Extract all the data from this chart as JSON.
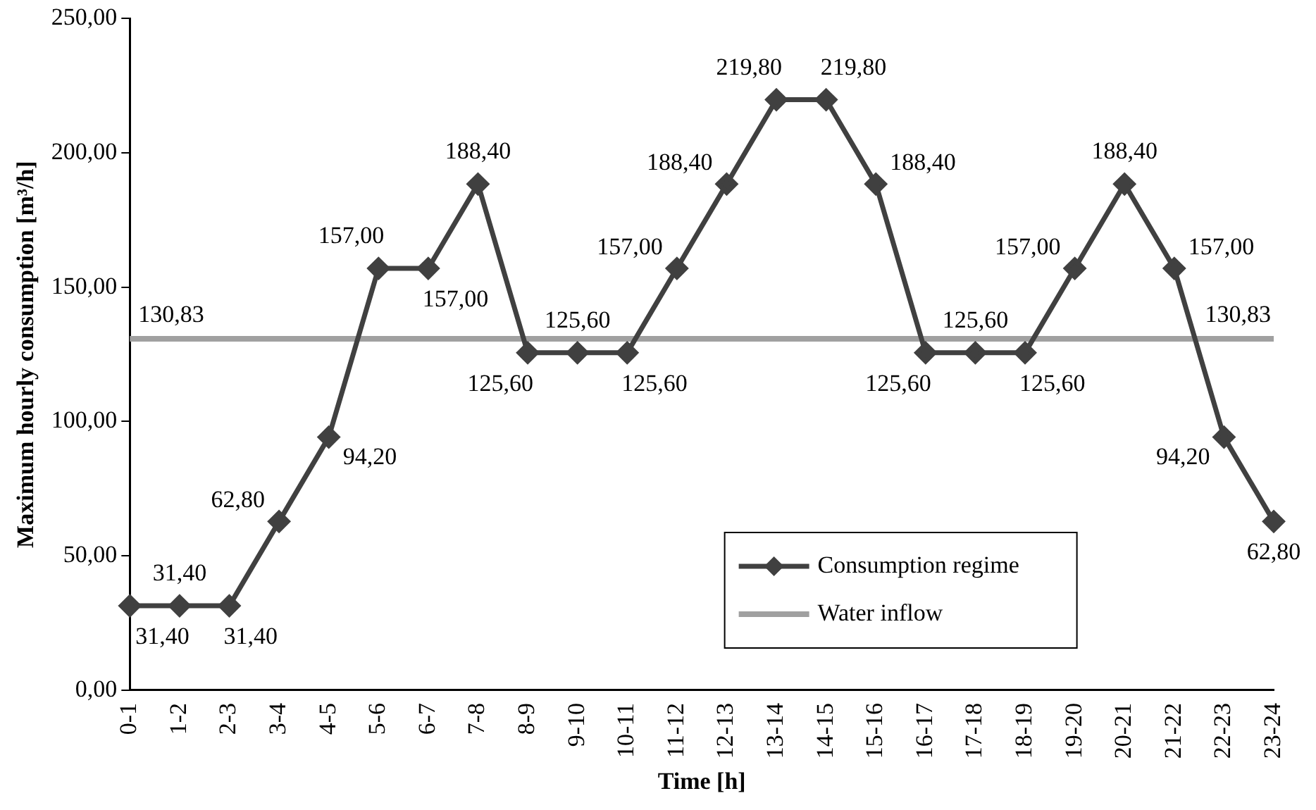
{
  "chart_data": {
    "type": "line",
    "xlabel": "Time [h]",
    "ylabel": "Maximum hourly consumption [m³/h]",
    "categories": [
      "0-1",
      "1-2",
      "2-3",
      "3-4",
      "4-5",
      "5-6",
      "6-7",
      "7-8",
      "8-9",
      "9-10",
      "10-11",
      "11-12",
      "12-13",
      "13-14",
      "14-15",
      "15-16",
      "16-17",
      "17-18",
      "18-19",
      "19-20",
      "20-21",
      "21-22",
      "22-23",
      "23-24"
    ],
    "series": [
      {
        "name": "Consumption regime",
        "color": "#404040",
        "marker": "diamond",
        "values": [
          31.4,
          31.4,
          31.4,
          62.8,
          94.2,
          157,
          157,
          188.4,
          125.6,
          125.6,
          125.6,
          157,
          188.4,
          219.8,
          219.8,
          188.4,
          125.6,
          125.6,
          125.6,
          157,
          188.4,
          157,
          94.2,
          62.8
        ],
        "value_labels": [
          "31,40",
          "31,40",
          "31,40",
          "62,80",
          "94,20",
          "157,00",
          "157,00",
          "188,40",
          "125,60",
          "125,60",
          "125,60",
          "157,00",
          "188,40",
          "219,80",
          "219,80",
          "188,40",
          "125,60",
          "125,60",
          "125,60",
          "157,00",
          "188,40",
          "157,00",
          "94,20",
          "62,80"
        ]
      },
      {
        "name": "Water inflow",
        "color": "#a0a0a0",
        "marker": "none",
        "values": [
          130.83,
          130.83,
          130.83,
          130.83,
          130.83,
          130.83,
          130.83,
          130.83,
          130.83,
          130.83,
          130.83,
          130.83,
          130.83,
          130.83,
          130.83,
          130.83,
          130.83,
          130.83,
          130.83,
          130.83,
          130.83,
          130.83,
          130.83,
          130.83
        ],
        "value_labels": [
          "130,83",
          null,
          null,
          null,
          null,
          null,
          null,
          null,
          null,
          null,
          null,
          null,
          null,
          null,
          null,
          null,
          null,
          null,
          null,
          null,
          null,
          null,
          null,
          "130,83"
        ]
      }
    ],
    "ylim": [
      0,
      250
    ],
    "yticks": [
      {
        "value": 0,
        "label": "0,00"
      },
      {
        "value": 50,
        "label": "50,00"
      },
      {
        "value": 100,
        "label": "100,00"
      },
      {
        "value": 150,
        "label": "150,00"
      },
      {
        "value": 200,
        "label": "200,00"
      },
      {
        "value": 250,
        "label": "250,00"
      }
    ],
    "grid": false,
    "legend": "bottom right",
    "line_style": "solid"
  }
}
